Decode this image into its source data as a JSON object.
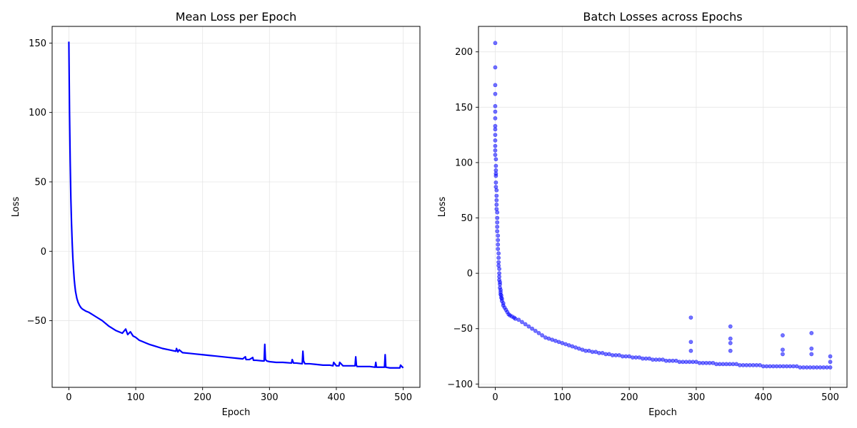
{
  "chart_data": [
    {
      "type": "line",
      "title": "Mean Loss per Epoch",
      "xlabel": "Epoch",
      "ylabel": "Loss",
      "xlim": [
        -25,
        525
      ],
      "ylim": [
        -98,
        162
      ],
      "xticks": [
        0,
        100,
        200,
        300,
        400,
        500
      ],
      "yticks": [
        -50,
        0,
        50,
        100,
        150
      ],
      "grid": true,
      "color": "#0000ff",
      "series": [
        {
          "x": [
            0,
            1,
            2,
            3,
            4,
            5,
            6,
            7,
            8,
            9,
            10,
            12,
            14,
            16,
            18,
            20,
            25,
            30,
            40,
            50,
            60,
            70,
            80,
            85,
            88,
            92,
            96,
            100,
            105,
            110,
            115,
            120,
            130,
            140,
            150,
            160,
            161,
            163,
            165,
            170,
            180,
            190,
            200,
            210,
            220,
            230,
            240,
            250,
            260,
            264,
            265,
            270,
            275,
            276,
            280,
            290,
            292,
            293,
            294,
            296,
            300,
            310,
            320,
            333,
            334,
            336,
            340,
            349,
            350,
            351,
            353,
            355,
            360,
            370,
            380,
            390,
            395,
            396,
            400,
            404,
            405,
            410,
            420,
            428,
            429,
            430,
            431,
            435,
            440,
            450,
            458,
            459,
            460,
            465,
            470,
            472,
            473,
            474,
            480,
            490,
            495,
            496,
            500
          ],
          "y": [
            151,
            100,
            65,
            38,
            20,
            6,
            -5,
            -13,
            -20,
            -25,
            -29,
            -34,
            -37,
            -39,
            -40.5,
            -41.5,
            -43,
            -44,
            -47,
            -50,
            -54,
            -57,
            -59,
            -56,
            -60,
            -58,
            -61,
            -62,
            -64,
            -65,
            -66,
            -67,
            -68.5,
            -70,
            -71,
            -72,
            -70,
            -72.5,
            -71,
            -73,
            -73.5,
            -74,
            -74.5,
            -75,
            -75.5,
            -76,
            -76.5,
            -77,
            -77.5,
            -76,
            -78,
            -78,
            -76.5,
            -78.5,
            -78.5,
            -79,
            -79,
            -67,
            -78,
            -79,
            -79.5,
            -80,
            -80,
            -80.5,
            -78,
            -80.5,
            -80.5,
            -81,
            -72,
            -79,
            -81,
            -81,
            -81,
            -81.5,
            -82,
            -82,
            -82.5,
            -80,
            -82.5,
            -82.5,
            -80,
            -82.5,
            -82.5,
            -82.5,
            -76,
            -82,
            -83,
            -83,
            -83,
            -83,
            -83.5,
            -80,
            -83.5,
            -83.5,
            -83.5,
            -83.5,
            -74.5,
            -83.5,
            -84,
            -84,
            -84,
            -82,
            -84
          ]
        }
      ]
    },
    {
      "type": "scatter",
      "title": "Batch Losses across Epochs",
      "xlabel": "Epoch",
      "ylabel": "Loss",
      "xlim": [
        -25,
        525
      ],
      "ylim": [
        -103,
        223
      ],
      "xticks": [
        0,
        100,
        200,
        300,
        400,
        500
      ],
      "yticks": [
        -100,
        -50,
        0,
        50,
        100,
        150,
        200
      ],
      "grid": true,
      "color": "#0000ff",
      "series": [
        {
          "x": [
            0,
            0,
            0,
            0,
            0,
            0,
            0,
            0,
            0,
            0,
            0,
            0,
            0,
            0,
            1,
            1,
            1,
            1,
            1,
            1,
            1,
            2,
            2,
            2,
            2,
            2,
            3,
            3,
            3,
            3,
            3,
            4,
            4,
            4,
            4,
            5,
            5,
            5,
            5,
            6,
            6,
            6,
            6,
            7,
            7,
            7,
            8,
            8,
            8,
            9,
            9,
            10,
            10,
            12,
            12,
            14,
            16,
            18,
            20,
            22,
            25,
            28,
            30,
            35,
            40,
            45,
            50,
            55,
            60,
            65,
            70,
            75,
            80,
            85,
            90,
            95,
            100,
            105,
            110,
            115,
            120,
            125,
            130,
            135,
            140,
            145,
            150,
            155,
            160,
            165,
            170,
            175,
            180,
            185,
            190,
            195,
            200,
            205,
            210,
            215,
            220,
            225,
            230,
            235,
            240,
            245,
            250,
            255,
            260,
            265,
            270,
            275,
            280,
            285,
            290,
            292,
            292,
            292,
            295,
            300,
            305,
            310,
            315,
            320,
            325,
            330,
            335,
            340,
            345,
            350,
            351,
            351,
            351,
            351,
            355,
            360,
            365,
            370,
            375,
            380,
            385,
            390,
            395,
            400,
            405,
            410,
            415,
            420,
            425,
            429,
            429,
            429,
            430,
            435,
            440,
            445,
            450,
            455,
            460,
            465,
            470,
            472,
            472,
            472,
            475,
            480,
            485,
            490,
            495,
            500,
            500,
            500
          ],
          "y": [
            208,
            186,
            170,
            162,
            151,
            146,
            140,
            133,
            130,
            125,
            120,
            115,
            111,
            107,
            103,
            97,
            93,
            90,
            88,
            82,
            78,
            75,
            70,
            66,
            62,
            58,
            55,
            50,
            46,
            42,
            38,
            34,
            30,
            26,
            22,
            18,
            14,
            10,
            7,
            4,
            0,
            -3,
            -6,
            -8,
            -10,
            -13,
            -15,
            -17,
            -19,
            -20,
            -22,
            -23,
            -25,
            -27,
            -29,
            -31,
            -33,
            -35,
            -37,
            -38,
            -39,
            -40,
            -41,
            -42,
            -44,
            -46,
            -48,
            -50,
            -52,
            -54,
            -56,
            -58,
            -59,
            -60,
            -61,
            -62,
            -63,
            -64,
            -65,
            -66,
            -67,
            -68,
            -69,
            -70,
            -70,
            -71,
            -71,
            -72,
            -72,
            -73,
            -73,
            -74,
            -74,
            -74,
            -75,
            -75,
            -75,
            -76,
            -76,
            -76,
            -77,
            -77,
            -77,
            -78,
            -78,
            -78,
            -78,
            -79,
            -79,
            -79,
            -79,
            -80,
            -80,
            -80,
            -80,
            -40,
            -62,
            -70,
            -80,
            -80,
            -81,
            -81,
            -81,
            -81,
            -81,
            -82,
            -82,
            -82,
            -82,
            -82,
            -48,
            -59,
            -63,
            -70,
            -82,
            -82,
            -83,
            -83,
            -83,
            -83,
            -83,
            -83,
            -83,
            -84,
            -84,
            -84,
            -84,
            -84,
            -84,
            -56,
            -69,
            -73,
            -84,
            -84,
            -84,
            -84,
            -84,
            -85,
            -85,
            -85,
            -85,
            -54,
            -68,
            -73,
            -85,
            -85,
            -85,
            -85,
            -85,
            -85,
            -75,
            -80
          ]
        }
      ]
    }
  ]
}
